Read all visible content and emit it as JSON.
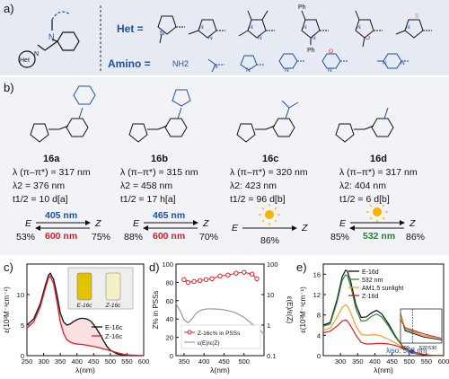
{
  "panel_a": {
    "label": "a)",
    "het_label": "Het =",
    "amino_label": "Amino =",
    "nh2_text": "NH2",
    "het_substituents": [
      "Ph",
      "Ph"
    ]
  },
  "panel_b": {
    "label": "b)",
    "compounds": [
      {
        "id": "16a",
        "lambda1": "λ (π–π*) = 317 nm",
        "lambda2": "λ2 = 376 nm",
        "half_life": "t1/2 = 10 d[a]",
        "forward": "405 nm",
        "reverse": "600 nm",
        "e_label": "E",
        "z_label": "Z",
        "e_pct": "53%",
        "z_pct": "75%"
      },
      {
        "id": "16b",
        "lambda1": "λ (π–π*) = 315 nm",
        "lambda2": "λ2 = 458 nm",
        "half_life": "t1/2 = 17 h[a]",
        "forward": "465 nm",
        "reverse": "600 nm",
        "e_label": "E",
        "z_label": "Z",
        "e_pct": "88%",
        "z_pct": "70%"
      },
      {
        "id": "16c",
        "lambda1": "λ (π–π*) = 320 nm",
        "lambda2": "λ2: 423 nm",
        "half_life": "t1/2 = 96 d[b]",
        "forward": "",
        "reverse": "",
        "e_label": "E",
        "z_label": "Z",
        "e_pct": "",
        "z_pct": "86%"
      },
      {
        "id": "16d",
        "lambda1": "λ (π–π*) = 317 nm",
        "lambda2": "λ2: 404 nm",
        "half_life": "t1/2 = 6 d[b]",
        "forward": "",
        "reverse": "532 nm",
        "e_label": "E",
        "z_label": "Z",
        "e_pct": "85%",
        "z_pct": "86%"
      }
    ]
  },
  "panel_c": {
    "label": "c)",
    "ylabel": "ε(10³M⁻¹cm⁻¹)",
    "xlabel": "λ(nm)",
    "legend": [
      "E-16c",
      "Z-16c"
    ],
    "vial_labels": [
      "E-16c",
      "Z-16c"
    ],
    "colors": {
      "E": "#111111",
      "Z": "#e01c24"
    }
  },
  "panel_d": {
    "label": "d)",
    "ylabel": "Z% in PSSs",
    "ylabel_right": "ε(E)/ε(Z)",
    "xlabel": "λ(nm)",
    "legend": [
      "Z-16c% in PSSs",
      "ε(E)/ε(Z)"
    ]
  },
  "panel_e": {
    "label": "e)",
    "ylabel": "ε(10³M⁻¹cm⁻¹)",
    "xlabel": "λ(nm)",
    "legend": [
      "E-16d",
      "532 nm",
      "AM1.5 sunlight",
      "Z-16d"
    ],
    "iso_label": "λiso: 508 nm",
    "colors": {
      "E": "#111111",
      "g532": "#2e8b3a",
      "sun": "#f0a020",
      "Z": "#e01c24"
    }
  },
  "chart_data": [
    {
      "type": "line",
      "id": "c",
      "xlabel": "λ(nm)",
      "ylabel": "ε(10³M⁻¹cm⁻¹)",
      "xlim": [
        250,
        600
      ],
      "ylim": [
        0,
        15
      ],
      "xticks": [
        250,
        300,
        350,
        400,
        450,
        500,
        550,
        600
      ],
      "yticks": [
        0,
        5,
        10
      ],
      "series": [
        {
          "name": "E-16c",
          "x": [
            250,
            270,
            290,
            305,
            315,
            320,
            330,
            340,
            350,
            360,
            370,
            380,
            390,
            400,
            410,
            420,
            430,
            440,
            450,
            460,
            470,
            480,
            490,
            500,
            520,
            540,
            560,
            600
          ],
          "y": [
            5.0,
            6.0,
            8.5,
            11.5,
            13.2,
            13.5,
            12.5,
            10.0,
            7.0,
            5.5,
            5.0,
            5.2,
            5.6,
            5.9,
            6.1,
            6.1,
            6.0,
            5.7,
            5.1,
            4.3,
            3.4,
            2.4,
            1.5,
            0.9,
            0.3,
            0.1,
            0.0,
            0.0
          ]
        },
        {
          "name": "Z-16c",
          "x": [
            250,
            270,
            290,
            305,
            315,
            320,
            330,
            340,
            350,
            360,
            370,
            380,
            390,
            400,
            420,
            440,
            460,
            480,
            500,
            520,
            540,
            560,
            600
          ],
          "y": [
            4.5,
            5.5,
            8.0,
            11.0,
            12.8,
            13.0,
            11.8,
            8.8,
            5.5,
            3.6,
            2.6,
            2.2,
            2.0,
            1.9,
            1.8,
            1.6,
            1.4,
            1.1,
            0.8,
            0.5,
            0.2,
            0.1,
            0.0
          ]
        }
      ]
    },
    {
      "type": "line",
      "id": "d",
      "xlabel": "λ(nm)",
      "ylabel": "Z% in PSSs",
      "ylabel_right": "ε(E)/ε(Z)",
      "xlim": [
        330,
        550
      ],
      "ylim": [
        0,
        100
      ],
      "ylim_right_log": [
        0.1,
        100
      ],
      "xticks": [
        350,
        400,
        450,
        500
      ],
      "yticks": [
        0,
        20,
        40,
        60,
        80,
        100
      ],
      "yticks_right": [
        0.1,
        1,
        10,
        100
      ],
      "series": [
        {
          "name": "Z-16c% in PSSs",
          "axis": "left",
          "x": [
            350,
            360,
            375,
            390,
            405,
            420,
            440,
            460,
            480,
            500,
            520,
            532
          ],
          "y": [
            83,
            80,
            81,
            82,
            83,
            84,
            87,
            88,
            90,
            91,
            89,
            84
          ]
        },
        {
          "name": "ε(E)/ε(Z)",
          "axis": "right",
          "x": [
            330,
            340,
            350,
            360,
            370,
            380,
            390,
            400,
            410,
            420,
            440,
            460,
            480,
            500,
            520,
            540,
            550
          ],
          "y": [
            5,
            3,
            1.5,
            1.2,
            1.6,
            2.4,
            3.0,
            3.3,
            3.4,
            3.4,
            3.3,
            3.0,
            2.5,
            1.8,
            1.1,
            0.7,
            0.5
          ]
        }
      ]
    },
    {
      "type": "line",
      "id": "e",
      "xlabel": "λ(nm)",
      "ylabel": "ε(10³M⁻¹cm⁻¹)",
      "xlim": [
        250,
        600
      ],
      "ylim": [
        0,
        18
      ],
      "xticks": [
        300,
        350,
        400,
        450,
        500,
        550,
        600
      ],
      "yticks": [
        0,
        4,
        8,
        12,
        16
      ],
      "series": [
        {
          "name": "E-16d",
          "x": [
            250,
            270,
            290,
            305,
            315,
            320,
            330,
            345,
            360,
            375,
            390,
            405,
            420,
            440,
            460,
            480,
            500,
            520,
            540,
            560,
            600
          ],
          "y": [
            6.0,
            6.5,
            11.0,
            15.5,
            16.8,
            16.6,
            14.5,
            10.0,
            7.5,
            7.6,
            8.4,
            8.9,
            8.2,
            6.2,
            3.8,
            1.9,
            0.8,
            0.4,
            0.2,
            0.1,
            0.0
          ]
        },
        {
          "name": "532 nm",
          "x": [
            250,
            270,
            290,
            305,
            315,
            320,
            330,
            345,
            360,
            375,
            390,
            405,
            420,
            440,
            460,
            480,
            500,
            520,
            540,
            560,
            600
          ],
          "y": [
            5.8,
            6.2,
            10.5,
            14.8,
            15.9,
            15.7,
            13.6,
            9.2,
            6.8,
            6.9,
            7.7,
            8.2,
            7.6,
            5.8,
            3.6,
            1.9,
            0.9,
            0.5,
            0.3,
            0.1,
            0.0
          ]
        },
        {
          "name": "AM1.5 sunlight",
          "x": [
            250,
            270,
            290,
            305,
            315,
            320,
            330,
            345,
            360,
            375,
            390,
            405,
            420,
            440,
            460,
            480,
            500,
            520,
            540,
            560,
            600
          ],
          "y": [
            5.0,
            5.4,
            7.5,
            9.5,
            10.0,
            9.8,
            8.4,
            5.8,
            4.2,
            4.0,
            4.1,
            4.1,
            3.8,
            3.2,
            2.5,
            1.7,
            1.0,
            0.5,
            0.3,
            0.1,
            0.0
          ]
        },
        {
          "name": "Z-16d",
          "x": [
            250,
            270,
            290,
            305,
            315,
            320,
            330,
            345,
            360,
            375,
            390,
            405,
            420,
            440,
            460,
            480,
            500,
            520,
            540,
            560,
            600
          ],
          "y": [
            4.5,
            4.8,
            5.8,
            6.8,
            7.0,
            6.8,
            5.8,
            4.0,
            2.6,
            2.3,
            2.3,
            2.4,
            2.4,
            2.3,
            2.0,
            1.5,
            1.0,
            0.6,
            0.3,
            0.1,
            0.0
          ]
        }
      ]
    }
  ]
}
